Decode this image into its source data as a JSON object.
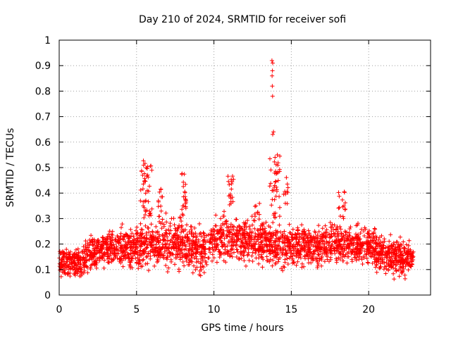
{
  "chart_data": {
    "type": "scatter",
    "title": "Day 210 of 2024, SRMTID for receiver sofi",
    "xlabel": "GPS time / hours",
    "ylabel": "SRMTID / TECUs",
    "xlim": [
      0,
      24
    ],
    "ylim": [
      0,
      1
    ],
    "xticks": [
      "0",
      "5",
      "10",
      "15",
      "20"
    ],
    "yticks": [
      "0",
      "0.1",
      "0.2",
      "0.3",
      "0.4",
      "0.5",
      "0.6",
      "0.7",
      "0.8",
      "0.9",
      "1"
    ],
    "grid": true,
    "marker": "+",
    "color": "#ff0000",
    "x_data_range": [
      0,
      22.9
    ],
    "n_points": 2600,
    "baseline_envelope": [
      {
        "x": 0,
        "low": 0.06,
        "high": 0.2
      },
      {
        "x": 1,
        "low": 0.05,
        "high": 0.2
      },
      {
        "x": 2,
        "low": 0.07,
        "high": 0.24
      },
      {
        "x": 3,
        "low": 0.08,
        "high": 0.29
      },
      {
        "x": 4,
        "low": 0.09,
        "high": 0.28
      },
      {
        "x": 5,
        "low": 0.08,
        "high": 0.3
      },
      {
        "x": 6,
        "low": 0.09,
        "high": 0.32
      },
      {
        "x": 7,
        "low": 0.07,
        "high": 0.33
      },
      {
        "x": 8,
        "low": 0.07,
        "high": 0.32
      },
      {
        "x": 9,
        "low": 0.05,
        "high": 0.3
      },
      {
        "x": 10,
        "low": 0.08,
        "high": 0.33
      },
      {
        "x": 11,
        "low": 0.1,
        "high": 0.35
      },
      {
        "x": 12,
        "low": 0.09,
        "high": 0.33
      },
      {
        "x": 13,
        "low": 0.1,
        "high": 0.33
      },
      {
        "x": 14,
        "low": 0.06,
        "high": 0.31
      },
      {
        "x": 15,
        "low": 0.09,
        "high": 0.3
      },
      {
        "x": 16,
        "low": 0.09,
        "high": 0.31
      },
      {
        "x": 17,
        "low": 0.08,
        "high": 0.3
      },
      {
        "x": 18,
        "low": 0.09,
        "high": 0.31
      },
      {
        "x": 19,
        "low": 0.1,
        "high": 0.28
      },
      {
        "x": 20,
        "low": 0.09,
        "high": 0.3
      },
      {
        "x": 21,
        "low": 0.05,
        "high": 0.25
      },
      {
        "x": 22,
        "low": 0.05,
        "high": 0.25
      },
      {
        "x": 22.9,
        "low": 0.09,
        "high": 0.2
      }
    ],
    "bursts": [
      {
        "x0": 5.2,
        "x1": 6.0,
        "low": 0.3,
        "high": 0.53,
        "n": 45
      },
      {
        "x0": 6.4,
        "x1": 6.7,
        "low": 0.3,
        "high": 0.42,
        "n": 12
      },
      {
        "x0": 7.8,
        "x1": 8.2,
        "low": 0.3,
        "high": 0.48,
        "n": 25
      },
      {
        "x0": 10.9,
        "x1": 11.3,
        "low": 0.35,
        "high": 0.48,
        "n": 18
      },
      {
        "x0": 12.6,
        "x1": 13.0,
        "low": 0.28,
        "high": 0.36,
        "n": 10
      },
      {
        "x0": 13.6,
        "x1": 14.3,
        "low": 0.3,
        "high": 0.55,
        "n": 40
      },
      {
        "x0": 14.5,
        "x1": 14.8,
        "low": 0.35,
        "high": 0.47,
        "n": 10
      },
      {
        "x0": 18.0,
        "x1": 18.5,
        "low": 0.3,
        "high": 0.41,
        "n": 15
      }
    ],
    "outliers": [
      {
        "x": 13.75,
        "y": 0.92
      },
      {
        "x": 13.8,
        "y": 0.91
      },
      {
        "x": 13.78,
        "y": 0.88
      },
      {
        "x": 13.76,
        "y": 0.86
      },
      {
        "x": 13.77,
        "y": 0.82
      },
      {
        "x": 13.79,
        "y": 0.78
      },
      {
        "x": 13.85,
        "y": 0.64
      },
      {
        "x": 13.8,
        "y": 0.63
      },
      {
        "x": 14.1,
        "y": 0.55
      },
      {
        "x": 13.95,
        "y": 0.54
      }
    ]
  }
}
